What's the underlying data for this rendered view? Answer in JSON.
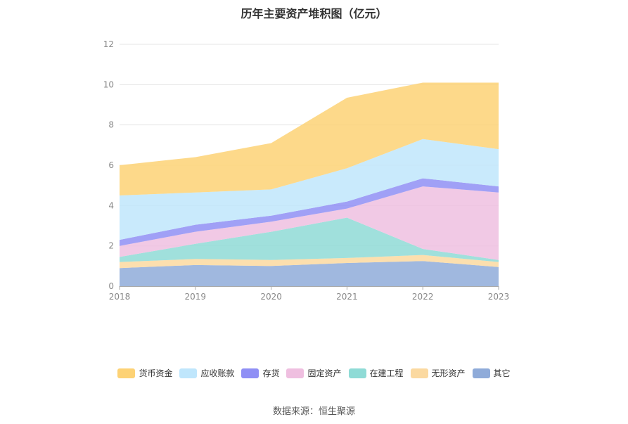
{
  "chart_data": {
    "type": "area",
    "stacked": true,
    "title": "历年主要资产堆积图（亿元）",
    "source": "数据来源：恒生聚源",
    "x": [
      "2018",
      "2019",
      "2020",
      "2021",
      "2022",
      "2023"
    ],
    "ylim": [
      0,
      12
    ],
    "yticks": [
      "0",
      "2",
      "4",
      "6",
      "8",
      "10",
      "12"
    ],
    "grid": true,
    "legend_position": "bottom",
    "series": [
      {
        "name": "其它",
        "color": "#8fabd9",
        "values": [
          0.9,
          1.05,
          1.0,
          1.15,
          1.25,
          0.95
        ]
      },
      {
        "name": "无形资产",
        "color": "#fbd9a0",
        "values": [
          0.3,
          0.3,
          0.3,
          0.25,
          0.3,
          0.25
        ]
      },
      {
        "name": "在建工程",
        "color": "#8fdbd6",
        "values": [
          0.25,
          0.75,
          1.4,
          2.0,
          0.3,
          0.1
        ]
      },
      {
        "name": "固定资产",
        "color": "#efbfe0",
        "values": [
          0.55,
          0.6,
          0.5,
          0.45,
          3.1,
          3.35
        ]
      },
      {
        "name": "存货",
        "color": "#8f8ff5",
        "values": [
          0.3,
          0.35,
          0.3,
          0.35,
          0.4,
          0.3
        ]
      },
      {
        "name": "应收账款",
        "color": "#bfe6fc",
        "values": [
          2.2,
          1.6,
          1.3,
          1.65,
          1.95,
          1.85
        ]
      },
      {
        "name": "货币资金",
        "color": "#fdd275",
        "values": [
          1.5,
          1.75,
          2.3,
          3.5,
          2.8,
          3.3
        ]
      }
    ]
  }
}
